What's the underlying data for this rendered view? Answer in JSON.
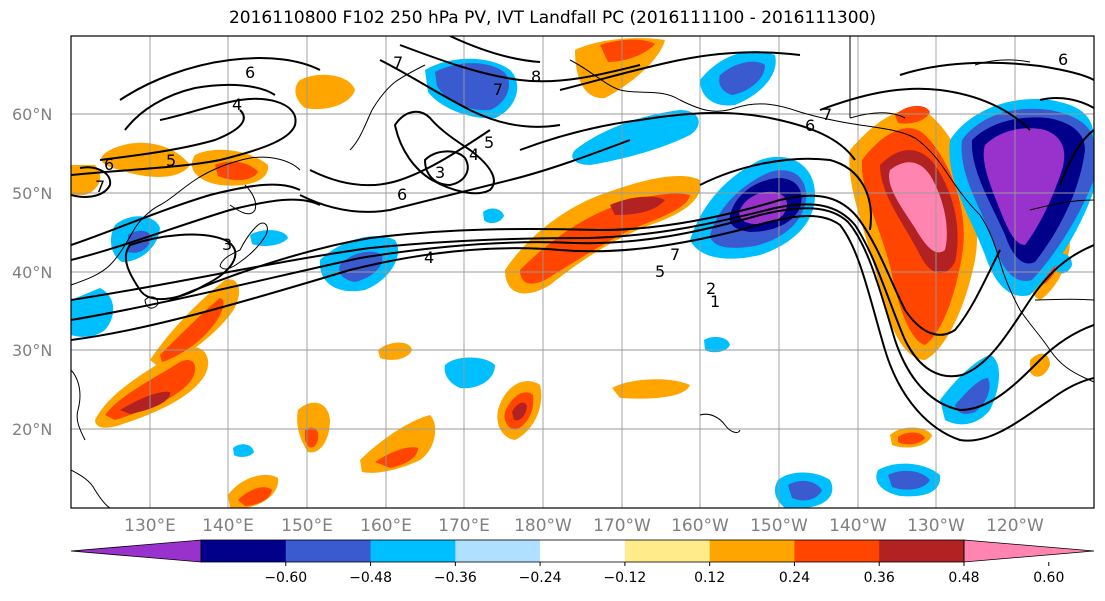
{
  "title": "2016110800 F102 250 hPa PV, IVT Landfall PC (2016111100 - 2016111300)",
  "lat_labels": [
    "60°N",
    "50°N",
    "40°N",
    "30°N",
    "20°N"
  ],
  "lon_labels": [
    "130°E",
    "140°E",
    "150°E",
    "160°E",
    "170°E",
    "180°W",
    "170°W",
    "160°W",
    "150°W",
    "140°W",
    "130°W",
    "120°W"
  ],
  "colorbar": {
    "colors": [
      "#9932cc",
      "#00008b",
      "#3a5bd0",
      "#00bfff",
      "#b0e0ff",
      "#ffffff",
      "#ffeb8a",
      "#ffa500",
      "#ff4500",
      "#b22222",
      "#ff85b0"
    ],
    "tick_labels": [
      "−0.60",
      "−0.48",
      "−0.36",
      "−0.24",
      "−0.12",
      "0.12",
      "0.24",
      "0.36",
      "0.48",
      "0.60"
    ]
  },
  "contour_labels": [
    "6",
    "4",
    "7",
    "6",
    "5",
    "7",
    "3",
    "5",
    "4",
    "6",
    "3",
    "4",
    "8",
    "7",
    "6",
    "7",
    "5",
    "2",
    "1",
    "6",
    "7"
  ]
}
